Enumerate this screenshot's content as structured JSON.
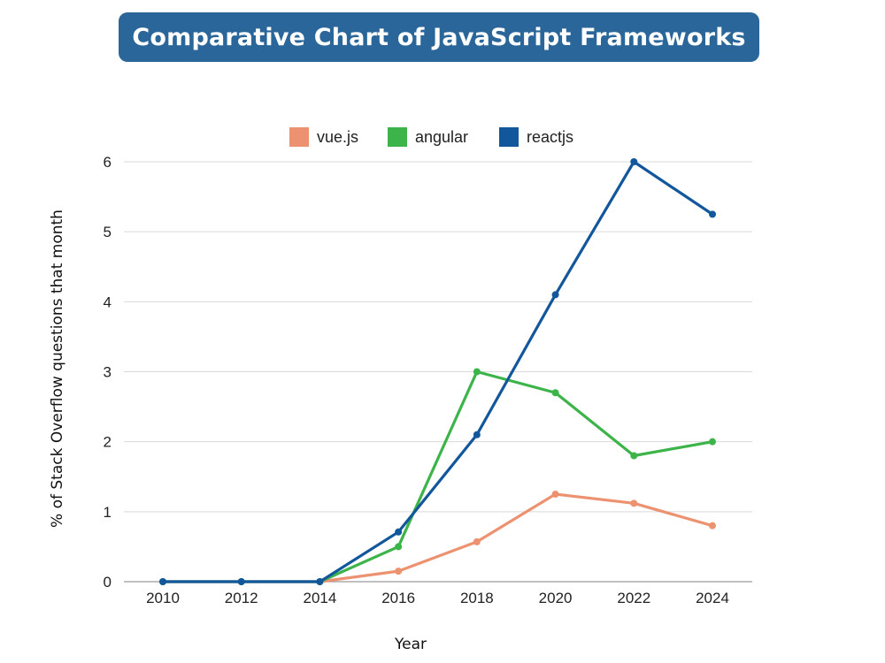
{
  "chart_data": {
    "type": "line",
    "title": "Comparative Chart of JavaScript Frameworks",
    "xlabel": "Year",
    "ylabel": "% of Stack Overflow questions that month",
    "x": [
      2010,
      2012,
      2014,
      2016,
      2018,
      2020,
      2022,
      2024
    ],
    "ylim": [
      0,
      6
    ],
    "yticks": [
      0,
      1,
      2,
      3,
      4,
      5,
      6
    ],
    "grid": true,
    "legend_position": "top",
    "series": [
      {
        "name": "vue.js",
        "color": "#ed9270",
        "values": [
          0,
          0,
          0,
          0.15,
          0.57,
          1.25,
          1.12,
          0.8
        ]
      },
      {
        "name": "angular",
        "color": "#3cb44a",
        "values": [
          0,
          0,
          0,
          0.5,
          3.0,
          2.7,
          1.8,
          2.0
        ]
      },
      {
        "name": "reactjs",
        "color": "#12579b",
        "values": [
          0,
          0,
          0,
          0.71,
          2.1,
          4.1,
          6.0,
          5.25
        ]
      }
    ]
  },
  "colors": {
    "banner": "#2a6699",
    "grid": "#d9d9d9"
  }
}
